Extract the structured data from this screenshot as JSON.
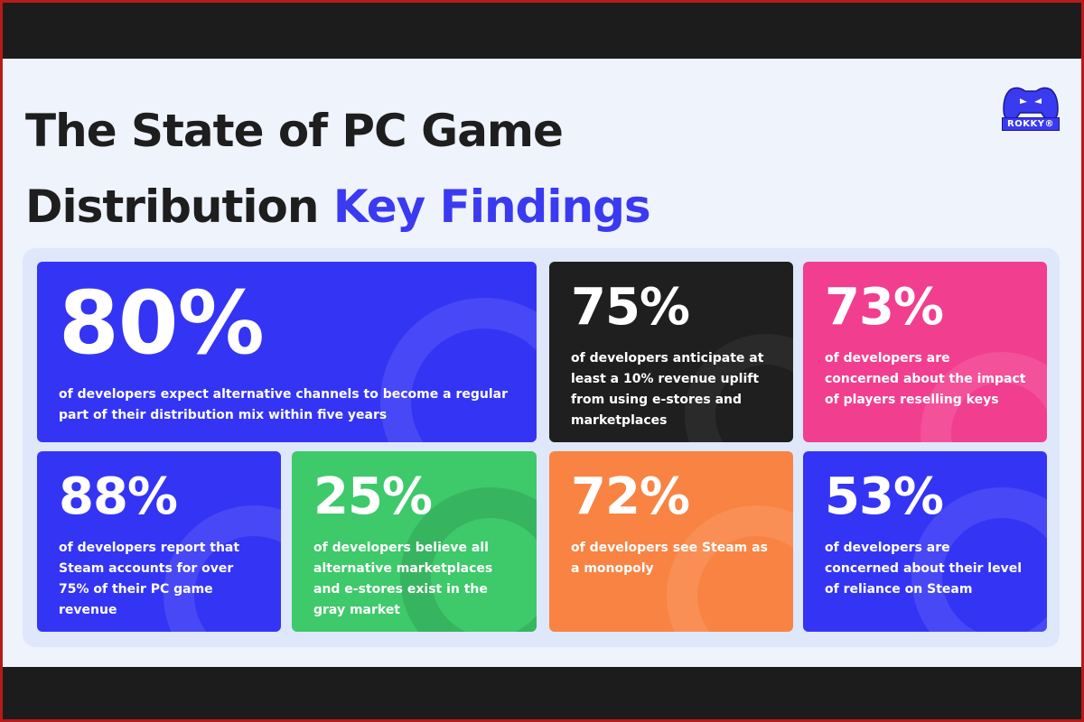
{
  "title": {
    "line1": "The State of PC Game",
    "line2_plain": "Distribution ",
    "line2_accent": "Key Findings"
  },
  "logo": {
    "text": "ROKKY®"
  },
  "colors": {
    "blue": "#3434f5",
    "black": "#1f1f1f",
    "pink": "#f23e8e",
    "green": "#3ec96a",
    "orange": "#f98342",
    "accent": "#3a3af0"
  },
  "cards": [
    {
      "stat": "80%",
      "desc": "of developers expect alternative channels to become a regular part of their distribution mix within five years"
    },
    {
      "stat": "75%",
      "desc": "of developers anticipate at least a 10% revenue uplift from using e-stores and marketplaces"
    },
    {
      "stat": "73%",
      "desc": "of developers are concerned about the impact of players reselling keys"
    },
    {
      "stat": "88%",
      "desc": "of developers report that Steam accounts for over 75% of their PC game revenue"
    },
    {
      "stat": "25%",
      "desc": "of developers believe all alternative marketplaces and e-stores exist in the gray market"
    },
    {
      "stat": "72%",
      "desc": "of developers see Steam as a monopoly"
    },
    {
      "stat": "53%",
      "desc": "of developers are concerned about their level of reliance on Steam"
    }
  ]
}
